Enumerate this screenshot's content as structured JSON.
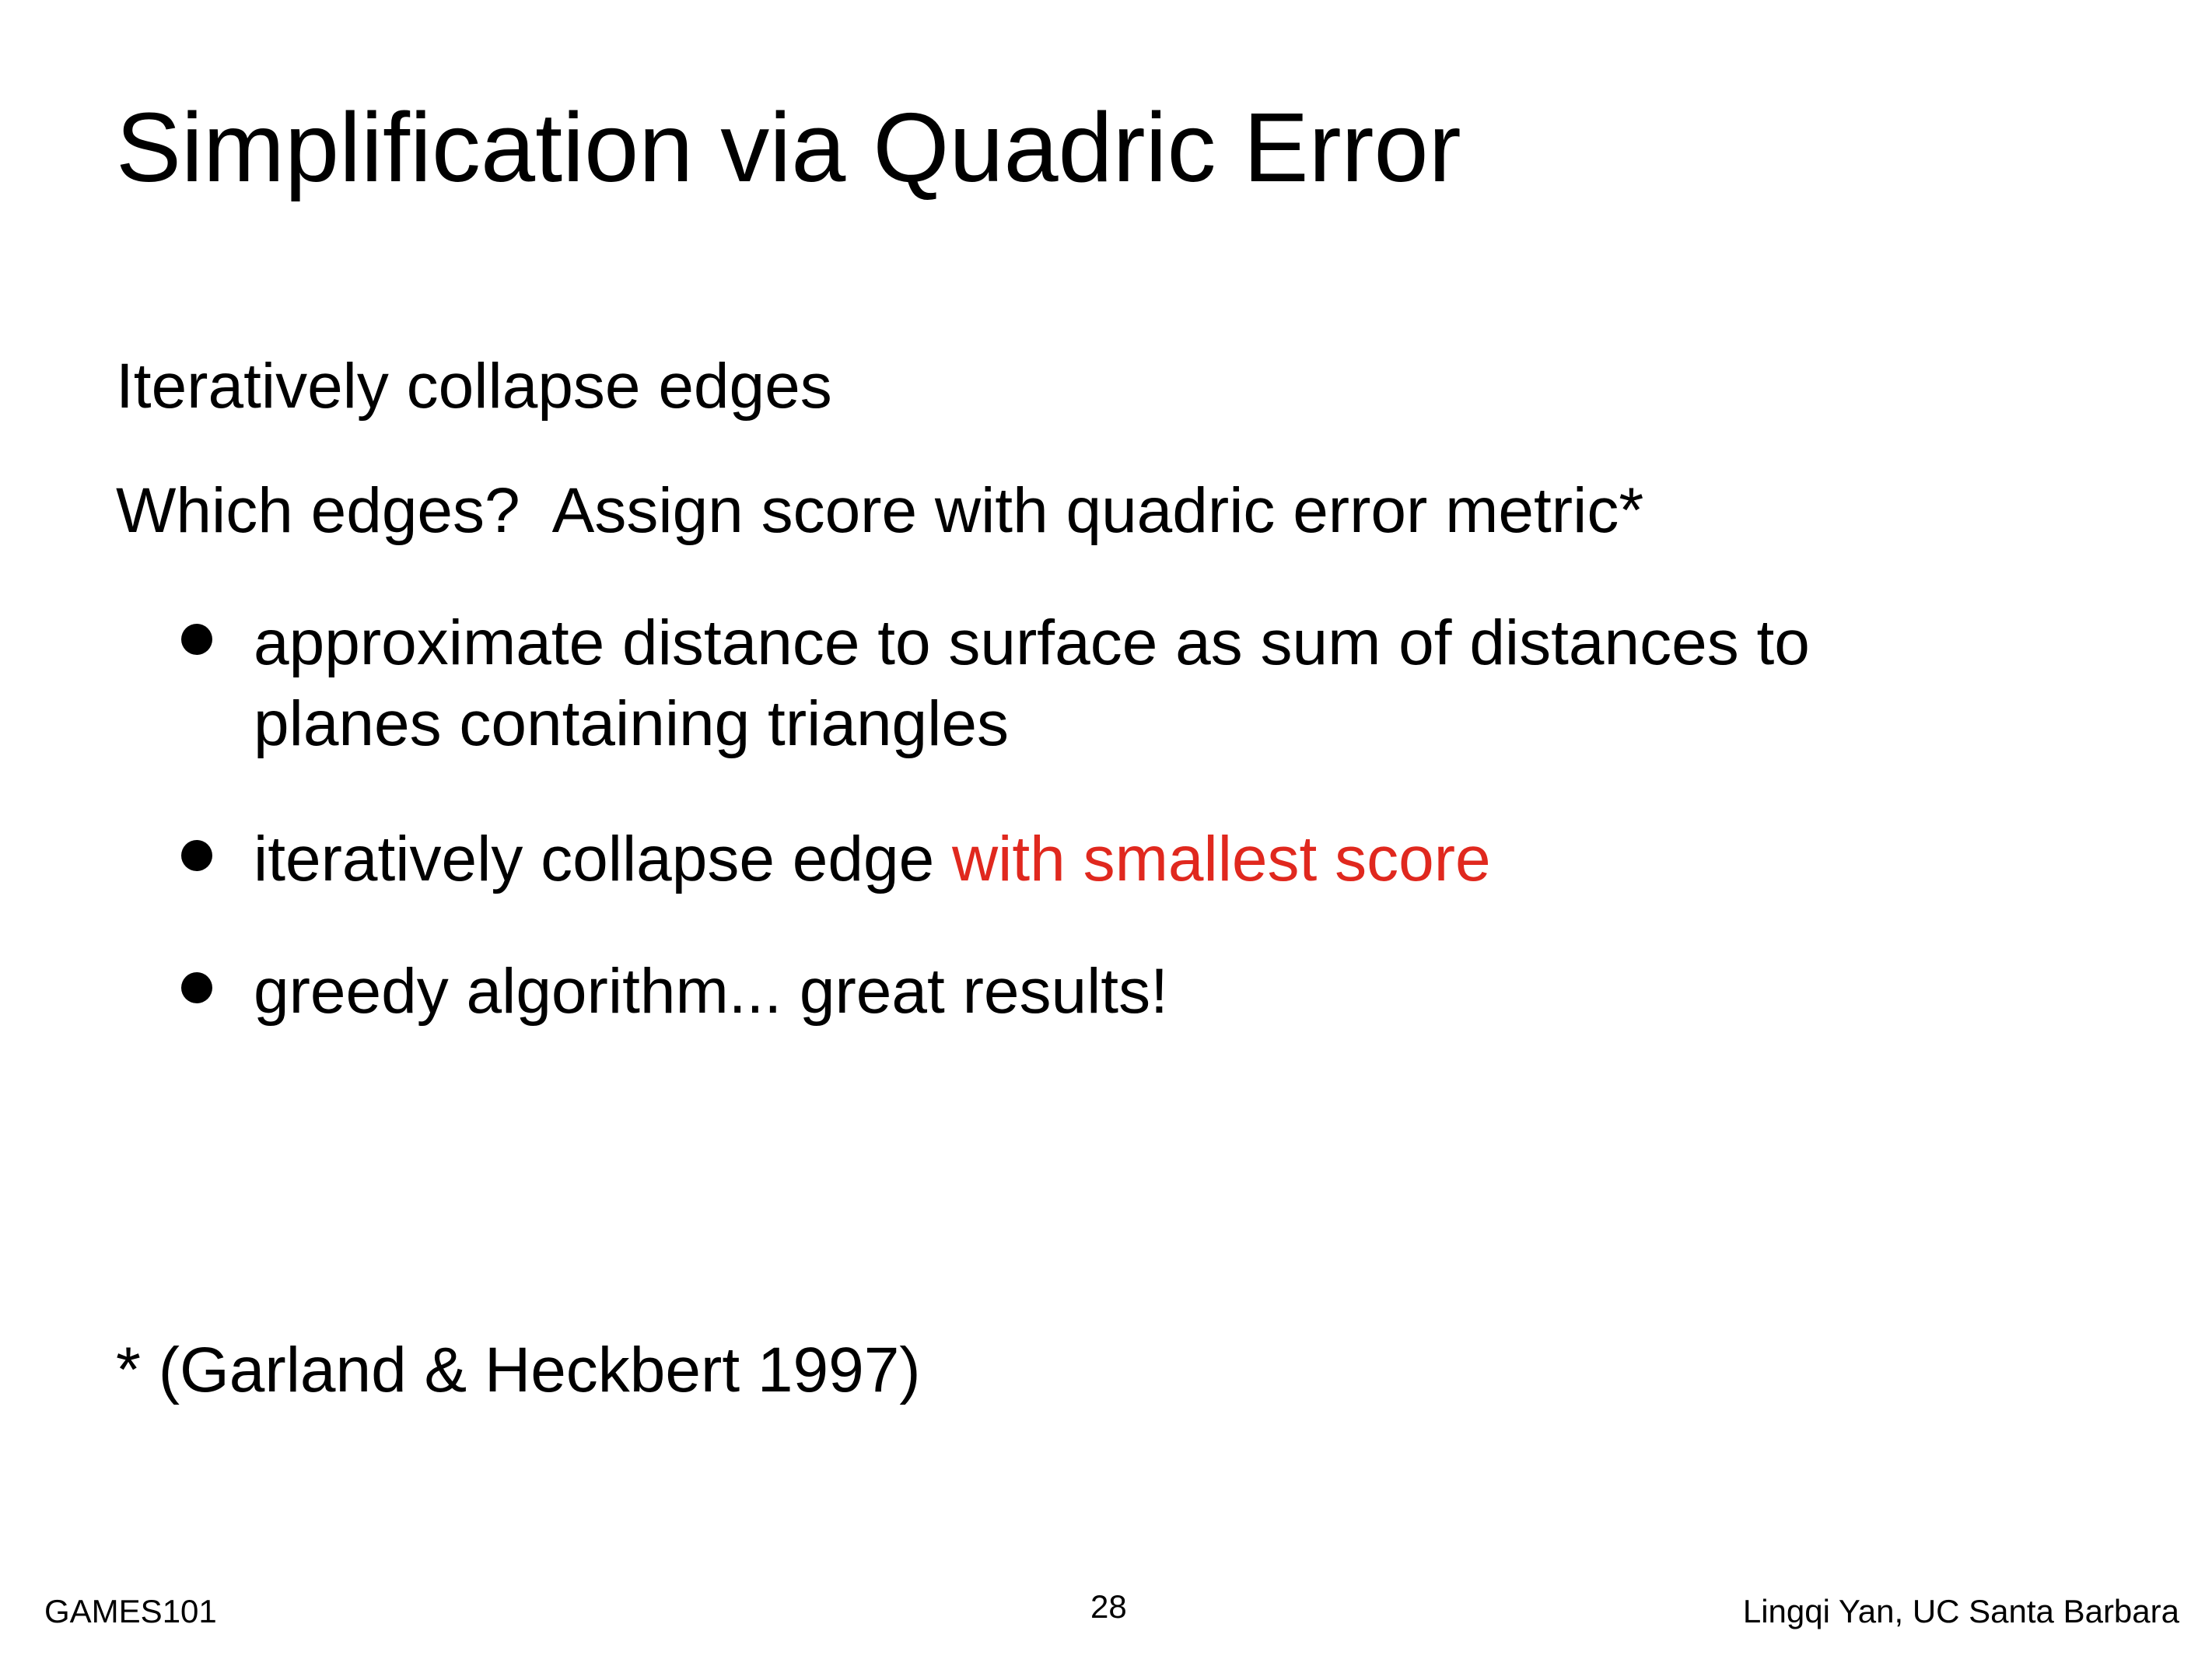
{
  "slide": {
    "title": "Simplification via Quadric Error",
    "lines": [
      "Iteratively collapse edges",
      "Which edges?  Assign score with quadric error metric*"
    ],
    "bullets": [
      {
        "line1": "approximate distance to surface as sum of distances to",
        "line2": "planes containing triangles"
      },
      {
        "text": "iteratively collapse edge ",
        "highlight": "with smallest score"
      },
      {
        "text": "greedy algorithm... great results!"
      }
    ],
    "footnote": "* (Garland & Heckbert 1997)",
    "highlight_color": "#e0281e"
  },
  "footer": {
    "left": "GAMES101",
    "page_number": "28",
    "right": "Lingqi Yan, UC Santa Barbara"
  }
}
